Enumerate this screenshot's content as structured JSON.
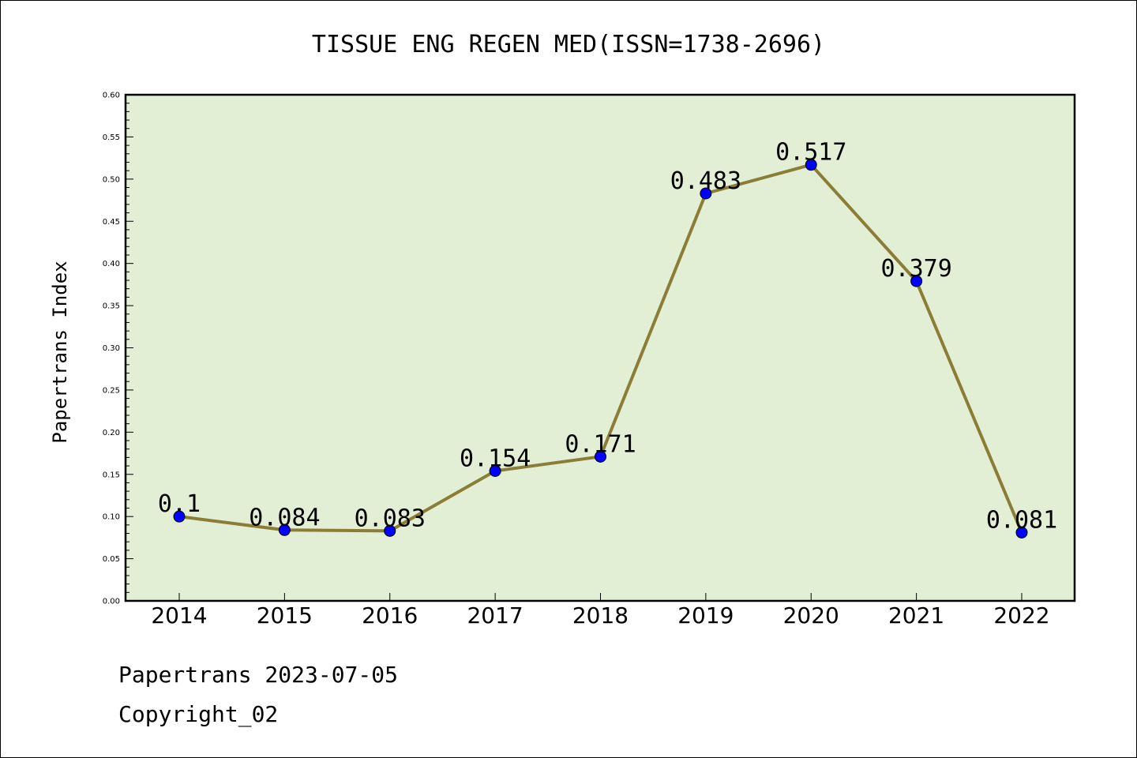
{
  "chart_data": {
    "type": "line",
    "title": "TISSUE ENG REGEN MED(ISSN=1738-2696)",
    "xlabel": "",
    "ylabel": "Papertrans Index",
    "categories": [
      "2014",
      "2015",
      "2016",
      "2017",
      "2018",
      "2019",
      "2020",
      "2021",
      "2022"
    ],
    "series": [
      {
        "values": [
          0.1,
          0.084,
          0.083,
          0.154,
          0.171,
          0.483,
          0.517,
          0.379,
          0.081
        ],
        "labels": [
          "0.1",
          "0.084",
          "0.083",
          "0.154",
          "0.171",
          "0.483",
          "0.517",
          "0.379",
          "0.081"
        ],
        "line_color": "#8b7d35",
        "marker_color": "#0000ff"
      }
    ],
    "ylim": [
      0,
      0.6
    ],
    "yticks": [
      "0.00",
      "0.05",
      "0.10",
      "0.15",
      "0.20",
      "0.25",
      "0.30",
      "0.35",
      "0.40",
      "0.45",
      "0.50",
      "0.55",
      "0.60"
    ],
    "plot_background": "#e2efd4",
    "grid": false,
    "legend": "none"
  },
  "footer": {
    "source": "Papertrans 2023-07-05",
    "copyright": "Copyright_02"
  }
}
